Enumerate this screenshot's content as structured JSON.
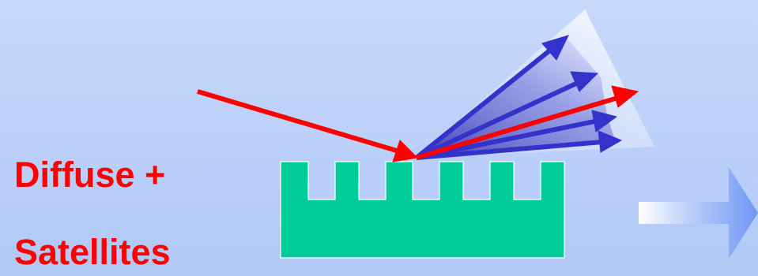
{
  "label": {
    "line1": "Diffuse +",
    "line2": "Satellites"
  },
  "colors": {
    "background_top": "#c7d9fb",
    "background_bottom": "#b1c8f6",
    "grating": "#00cc99",
    "incident_ray": "#ff0000",
    "specular_ray": "#ff0000",
    "diffuse_rays": "#3333cc",
    "scatter_cone": "#ffffff",
    "label_text": "#ff0000",
    "next_arrow": "#6f96f4"
  },
  "icons": {
    "next": "right-arrow-icon"
  }
}
